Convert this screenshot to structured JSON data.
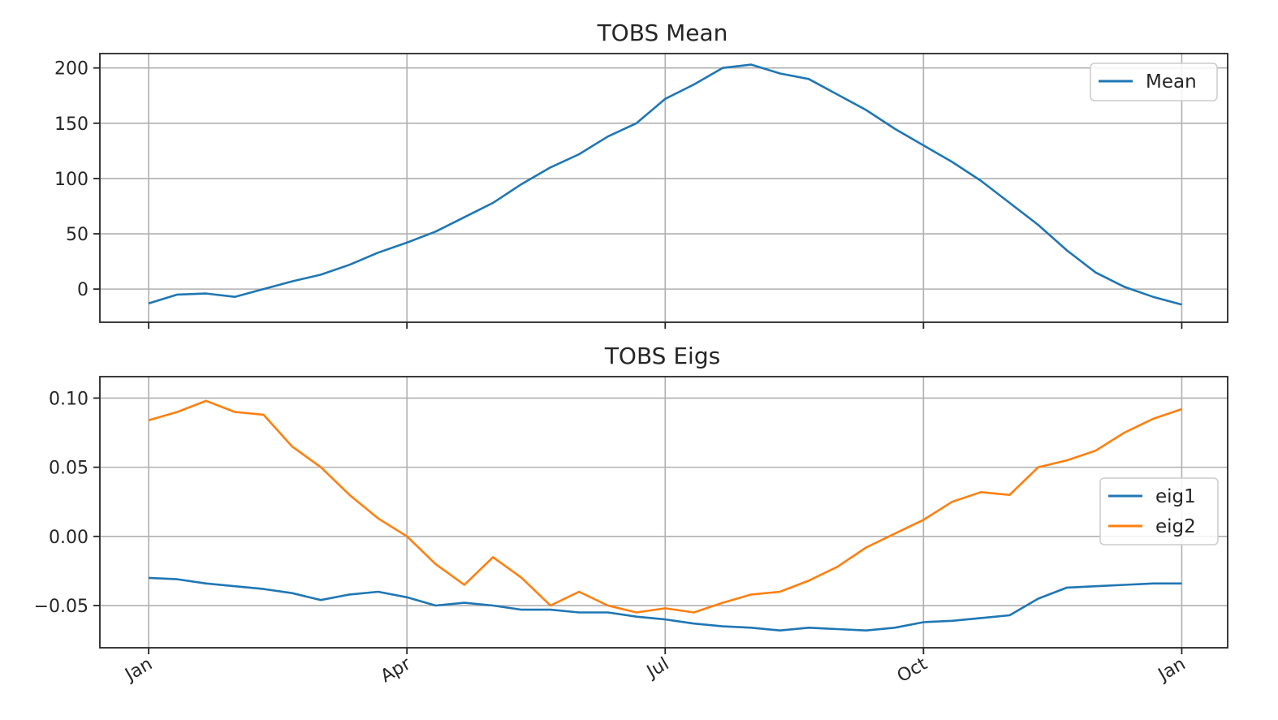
{
  "chart_data": [
    {
      "type": "line",
      "title": "TOBS Mean",
      "xlabel": "",
      "ylabel": "",
      "x_tick_labels": [
        "Jan",
        "Apr",
        "Jul",
        "Oct",
        "Jan"
      ],
      "x_tick_days": [
        0,
        90,
        180,
        270,
        360
      ],
      "xlim": [
        -17,
        376
      ],
      "yticks": [
        "200",
        "150",
        "100",
        "50",
        "0"
      ],
      "ytick_values": [
        200,
        150,
        100,
        50,
        0
      ],
      "ylim": [
        -30,
        213
      ],
      "grid": true,
      "legend": "top-right",
      "series": [
        {
          "name": "Mean",
          "color": "#1f77b4",
          "x": [
            0,
            10,
            20,
            30,
            40,
            50,
            60,
            70,
            80,
            90,
            100,
            110,
            120,
            130,
            140,
            150,
            160,
            170,
            180,
            190,
            200,
            210,
            220,
            230,
            240,
            250,
            260,
            270,
            280,
            290,
            300,
            310,
            320,
            330,
            340,
            350,
            360
          ],
          "y": [
            -13,
            -5,
            -4,
            -7,
            0,
            7,
            13,
            22,
            33,
            42,
            52,
            65,
            78,
            95,
            110,
            122,
            138,
            150,
            172,
            185,
            200,
            203,
            195,
            190,
            176,
            162,
            145,
            130,
            115,
            98,
            78,
            58,
            35,
            15,
            2,
            -7,
            -14
          ]
        }
      ]
    },
    {
      "type": "line",
      "title": "TOBS Eigs",
      "xlabel": "",
      "ylabel": "",
      "x_tick_labels": [
        "Jan",
        "Apr",
        "Jul",
        "Oct",
        "Jan"
      ],
      "x_tick_days": [
        0,
        90,
        180,
        270,
        360
      ],
      "xlim": [
        -17,
        376
      ],
      "yticks": [
        "0.10",
        "0.05",
        "0.00",
        "−0.05"
      ],
      "ytick_values": [
        0.1,
        0.05,
        0.0,
        -0.05
      ],
      "ylim": [
        -0.0805,
        0.1155
      ],
      "grid": true,
      "legend": "center-right",
      "series": [
        {
          "name": "eig1",
          "color": "#1f77b4",
          "x": [
            0,
            10,
            20,
            30,
            40,
            50,
            60,
            70,
            80,
            90,
            100,
            110,
            120,
            130,
            140,
            150,
            160,
            170,
            180,
            190,
            200,
            210,
            220,
            230,
            240,
            250,
            260,
            270,
            280,
            290,
            300,
            310,
            320,
            330,
            340,
            350,
            360
          ],
          "y": [
            -0.03,
            -0.031,
            -0.034,
            -0.036,
            -0.038,
            -0.041,
            -0.046,
            -0.042,
            -0.04,
            -0.044,
            -0.05,
            -0.048,
            -0.05,
            -0.053,
            -0.053,
            -0.055,
            -0.055,
            -0.058,
            -0.06,
            -0.063,
            -0.065,
            -0.066,
            -0.068,
            -0.066,
            -0.067,
            -0.068,
            -0.066,
            -0.062,
            -0.061,
            -0.059,
            -0.057,
            -0.045,
            -0.037,
            -0.036,
            -0.035,
            -0.034,
            -0.034
          ]
        },
        {
          "name": "eig2",
          "color": "#ff7f0e",
          "x": [
            0,
            10,
            20,
            30,
            40,
            50,
            60,
            70,
            80,
            90,
            100,
            110,
            120,
            130,
            140,
            150,
            160,
            170,
            180,
            190,
            200,
            210,
            220,
            230,
            240,
            250,
            260,
            270,
            280,
            290,
            300,
            310,
            320,
            330,
            340,
            350,
            360
          ],
          "y": [
            0.084,
            0.09,
            0.098,
            0.09,
            0.088,
            0.065,
            0.05,
            0.03,
            0.013,
            0.0,
            -0.02,
            -0.035,
            -0.015,
            -0.03,
            -0.05,
            -0.04,
            -0.05,
            -0.055,
            -0.052,
            -0.055,
            -0.048,
            -0.042,
            -0.04,
            -0.032,
            -0.022,
            -0.008,
            0.002,
            0.012,
            0.025,
            0.032,
            0.03,
            0.05,
            0.055,
            0.062,
            0.075,
            0.085,
            0.092
          ]
        }
      ]
    }
  ]
}
